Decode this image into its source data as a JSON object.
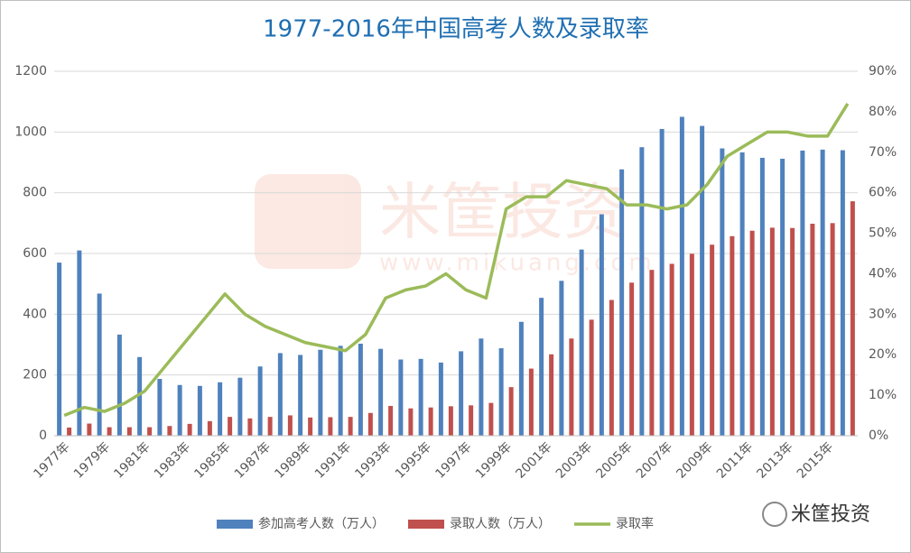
{
  "chart_data": {
    "type": "bar_line",
    "title": "1977-2016年中国高考人数及录取率",
    "watermark": [
      "米筐投资",
      "www.mikuang.com"
    ],
    "badge": "米筐投资",
    "categories": [
      "1977年",
      null,
      "1979年",
      null,
      "1981年",
      null,
      "1983年",
      null,
      "1985年",
      null,
      "1987年",
      null,
      "1989年",
      null,
      "1991年",
      null,
      "1993年",
      null,
      "1995年",
      null,
      "1997年",
      null,
      "1999年",
      null,
      "2001年",
      null,
      "2003年",
      null,
      "2005年",
      null,
      "2007年",
      null,
      "2009年",
      null,
      "2011年",
      null,
      "2013年",
      null,
      "2015年",
      null
    ],
    "series": [
      {
        "name": "参加高考人数（万人）",
        "color": "#4f81bd",
        "kind": "bar",
        "values": [
          570,
          610,
          468,
          333,
          259,
          187,
          167,
          164,
          176,
          191,
          228,
          272,
          266,
          283,
          296,
          303,
          286,
          251,
          253,
          241,
          278,
          320,
          288,
          375,
          454,
          510,
          613,
          729,
          877,
          950,
          1010,
          1050,
          1020,
          946,
          933,
          915,
          912,
          939,
          942,
          940
        ]
      },
      {
        "name": "录取人数（万人）",
        "color": "#c0504d",
        "kind": "bar",
        "values": [
          27,
          40,
          28,
          28,
          28,
          32,
          39,
          48,
          62,
          57,
          62,
          67,
          60,
          61,
          62,
          75,
          98,
          90,
          93,
          97,
          100,
          108,
          160,
          221,
          268,
          320,
          382,
          447,
          504,
          546,
          566,
          599,
          629,
          657,
          675,
          685,
          684,
          698,
          700,
          772
        ]
      },
      {
        "name": "录取率",
        "color": "#9bbb59",
        "kind": "line",
        "axis": "y2",
        "values": [
          5,
          7,
          6,
          8,
          11,
          17,
          23,
          29,
          35,
          30,
          27,
          25,
          23,
          22,
          21,
          25,
          34,
          36,
          37,
          40,
          36,
          34,
          56,
          59,
          59,
          63,
          62,
          61,
          57,
          57,
          56,
          57,
          62,
          69,
          72,
          75,
          75,
          74,
          74,
          82
        ]
      }
    ],
    "ylim": [
      0,
      1200
    ],
    "yticks": [
      0,
      200,
      400,
      600,
      800,
      1000,
      1200
    ],
    "y2lim": [
      0,
      90
    ],
    "y2ticks": [
      {
        "value": 0,
        "label": "0%"
      },
      {
        "value": 10,
        "label": "10%"
      },
      {
        "value": 20,
        "label": "20%"
      },
      {
        "value": 30,
        "label": "30%"
      },
      {
        "value": 40,
        "label": "40%"
      },
      {
        "value": 50,
        "label": "50%"
      },
      {
        "value": 60,
        "label": "60%"
      },
      {
        "value": 70,
        "label": "70%"
      },
      {
        "value": 80,
        "label": "80%"
      },
      {
        "value": 90,
        "label": "90%"
      }
    ],
    "grid": true,
    "legend": "bottom"
  }
}
